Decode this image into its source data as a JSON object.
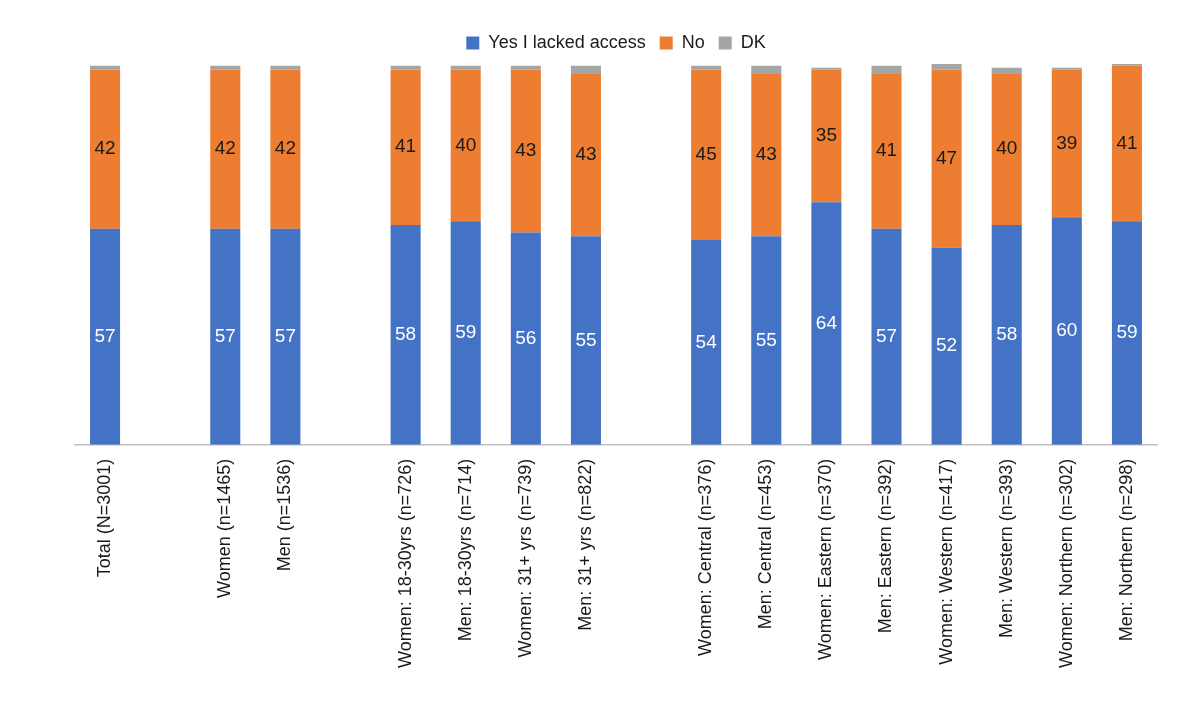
{
  "chart_data": {
    "type": "bar",
    "stacked": true,
    "legend": "top",
    "ylim": [
      0,
      101
    ],
    "tick_labels": "x",
    "grid": false,
    "categories": [
      "Total (N=3001)",
      null,
      "Women (n=1465)",
      "Men (n=1536)",
      null,
      "Women: 18-30yrs (n=726)",
      "Men: 18-30yrs (n=714)",
      "Women: 31+ yrs (n=739)",
      "Men: 31+ yrs (n=822)",
      null,
      "Women: Central (n=376)",
      "Men: Central (n=453)",
      "Women: Eastern (n=370)",
      "Men: Eastern (n=392)",
      "Women: Western (n=417)",
      "Men: Western (n=393)",
      "Women: Northern (n=302)",
      "Men: Northern (n=298)"
    ],
    "series": [
      {
        "name": "Yes I lacked access",
        "color": "#4472c4",
        "values": [
          57,
          null,
          57,
          57,
          null,
          58,
          59,
          56,
          55,
          null,
          54,
          55,
          64,
          57,
          52,
          58,
          60,
          59
        ],
        "value_labels": [
          "57",
          null,
          "57",
          "57",
          null,
          "58",
          "59",
          "56",
          "55",
          null,
          "54",
          "55",
          "64",
          "57",
          "52",
          "58",
          "60",
          "59"
        ]
      },
      {
        "name": "No",
        "color": "#ed7d31",
        "values": [
          42,
          null,
          42,
          42,
          null,
          41,
          40,
          43,
          43,
          null,
          45,
          43,
          35,
          41,
          47,
          40,
          39,
          41
        ],
        "value_labels": [
          "42",
          null,
          "42",
          "42",
          null,
          "41",
          "40",
          "43",
          "43",
          null,
          "45",
          "43",
          "35",
          "41",
          "47",
          "40",
          "39",
          "41"
        ]
      },
      {
        "name": "DK",
        "color": "#a5a5a5",
        "values": [
          1,
          null,
          1,
          1,
          null,
          1,
          1,
          1,
          2,
          null,
          1,
          2,
          0.5,
          2,
          1.5,
          1.5,
          0.5,
          0.5
        ]
      }
    ]
  }
}
